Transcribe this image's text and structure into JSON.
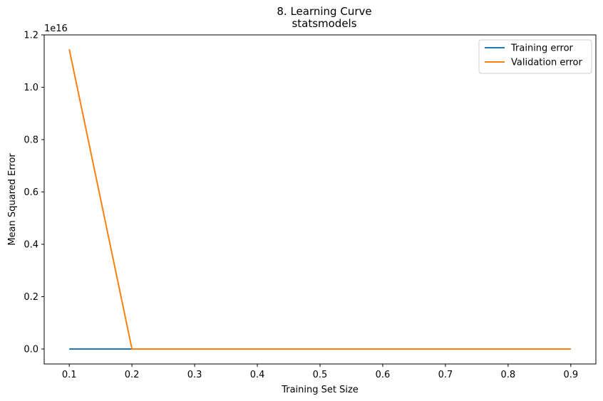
{
  "chart_data": {
    "type": "line",
    "title": "8. Learning Curve",
    "subtitle": "statsmodels",
    "xlabel": "Training Set Size",
    "ylabel": "Mean Squared Error",
    "y_offset_label": "1e16",
    "x": [
      0.1,
      0.2,
      0.3,
      0.4,
      0.5,
      0.6,
      0.7,
      0.8,
      0.9
    ],
    "series": [
      {
        "name": "Training error",
        "color": "#1f77b4",
        "values": [
          0,
          0,
          0,
          0,
          0,
          0,
          0,
          0,
          0
        ]
      },
      {
        "name": "Validation error",
        "color": "#ff7f0e",
        "values": [
          1.145e+16,
          0,
          0,
          0,
          0,
          0,
          0,
          0,
          0
        ]
      }
    ],
    "xlim": [
      0.06,
      0.94
    ],
    "ylim": [
      -572000000000000.0,
      1.2e+16
    ],
    "xticks": [
      0.1,
      0.2,
      0.3,
      0.4,
      0.5,
      0.6,
      0.7,
      0.8,
      0.9
    ],
    "xtick_labels": [
      "0.1",
      "0.2",
      "0.3",
      "0.4",
      "0.5",
      "0.6",
      "0.7",
      "0.8",
      "0.9"
    ],
    "yticks": [
      0,
      2000000000000000.0,
      4000000000000000.0,
      6000000000000000.0,
      8000000000000000.0,
      1e+16,
      1.2e+16
    ],
    "ytick_labels": [
      "0.0",
      "0.2",
      "0.4",
      "0.6",
      "0.8",
      "1.0",
      "1.2"
    ],
    "grid": false,
    "legend_position": "top-right"
  }
}
